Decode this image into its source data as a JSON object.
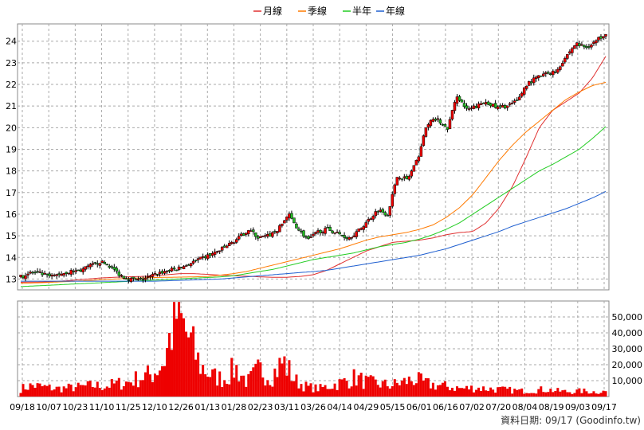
{
  "chart_data": {
    "type": "line",
    "legend": {
      "placement": "top-center",
      "items": [
        {
          "name": "月線",
          "color": "#e03030"
        },
        {
          "name": "季線",
          "color": "#ff7a00"
        },
        {
          "name": "半年",
          "color": "#22cc22"
        },
        {
          "name": "年線",
          "color": "#1f5fd0"
        }
      ]
    },
    "price_axis": {
      "ylim": [
        12.5,
        24.8
      ],
      "ticks": [
        "13",
        "14",
        "15",
        "16",
        "17",
        "18",
        "19",
        "20",
        "21",
        "22",
        "23",
        "24"
      ]
    },
    "volume_axis": {
      "ylim": [
        0,
        60000
      ],
      "ticks": [
        "10,000",
        "20,000",
        "30,000",
        "40,000",
        "50,000"
      ],
      "tick_values": [
        10000,
        20000,
        30000,
        40000,
        50000
      ]
    },
    "x_labels": [
      "09/18",
      "10/07",
      "10/23",
      "11/10",
      "11/25",
      "12/10",
      "12/26",
      "01/13",
      "01/28",
      "02/23",
      "03/11",
      "03/26",
      "04/14",
      "04/29",
      "05/15",
      "06/01",
      "06/16",
      "07/02",
      "07/20",
      "08/04",
      "08/19",
      "09/03",
      "09/17"
    ],
    "grid": true,
    "n_days": 245,
    "series": [
      {
        "name": "月線",
        "values": [
          12.85,
          12.86,
          12.87,
          12.9,
          12.95,
          13.0,
          13.05,
          13.08,
          13.1,
          13.12,
          13.15,
          13.2,
          13.25,
          13.25,
          13.22,
          13.18,
          13.15,
          13.13,
          13.1,
          13.08,
          13.08,
          13.12,
          13.2,
          13.4,
          13.7,
          14.0,
          14.3,
          14.5,
          14.7,
          14.75,
          14.8,
          14.9,
          15.05,
          15.15,
          15.2,
          15.6,
          16.3,
          17.3,
          18.6,
          20.0,
          20.8,
          21.2,
          21.6,
          22.3,
          23.3
        ]
      },
      {
        "name": "季線",
        "values": [
          12.8,
          12.82,
          12.84,
          12.87,
          12.9,
          12.93,
          12.97,
          13.0,
          13.03,
          13.05,
          13.07,
          13.08,
          13.09,
          13.1,
          13.12,
          13.18,
          13.25,
          13.35,
          13.5,
          13.65,
          13.8,
          13.95,
          14.1,
          14.25,
          14.4,
          14.6,
          14.8,
          14.95,
          15.05,
          15.15,
          15.3,
          15.5,
          15.85,
          16.3,
          16.9,
          17.7,
          18.5,
          19.2,
          19.8,
          20.3,
          20.8,
          21.3,
          21.65,
          21.95,
          22.1
        ]
      },
      {
        "name": "半年",
        "values": [
          12.65,
          12.68,
          12.71,
          12.74,
          12.77,
          12.8,
          12.83,
          12.86,
          12.89,
          12.92,
          12.95,
          12.98,
          13.01,
          13.04,
          13.07,
          13.1,
          13.15,
          13.25,
          13.35,
          13.45,
          13.6,
          13.75,
          13.9,
          14.0,
          14.1,
          14.2,
          14.35,
          14.5,
          14.6,
          14.7,
          14.85,
          15.05,
          15.3,
          15.6,
          16.0,
          16.4,
          16.8,
          17.2,
          17.6,
          18.0,
          18.3,
          18.65,
          19.0,
          19.5,
          20.05
        ]
      },
      {
        "name": "年線",
        "values": [
          12.9,
          12.9,
          12.9,
          12.9,
          12.9,
          12.9,
          12.9,
          12.9,
          12.9,
          12.9,
          12.9,
          12.92,
          12.94,
          12.96,
          12.98,
          13.0,
          13.05,
          13.1,
          13.15,
          13.2,
          13.25,
          13.3,
          13.35,
          13.4,
          13.5,
          13.6,
          13.7,
          13.8,
          13.9,
          14.0,
          14.1,
          14.25,
          14.4,
          14.6,
          14.8,
          15.0,
          15.2,
          15.45,
          15.65,
          15.85,
          16.05,
          16.25,
          16.5,
          16.75,
          17.05
        ]
      }
    ],
    "price_path": [
      13.1,
      13.3,
      13.25,
      13.1,
      13.25,
      13.35,
      13.4,
      13.6,
      13.8,
      13.6,
      13.2,
      13.0,
      12.95,
      13.1,
      13.3,
      13.4,
      13.5,
      13.7,
      13.9,
      14.1,
      14.3,
      14.6,
      14.9,
      15.3,
      14.9,
      15.0,
      15.3,
      16.0,
      15.3,
      14.8,
      15.2,
      15.3,
      15.1,
      14.9,
      15.2,
      15.7,
      16.2,
      16.0,
      17.8,
      17.6,
      18.5,
      20.2,
      20.4,
      19.9,
      21.5,
      20.8,
      21.0,
      21.2,
      20.9,
      21.0,
      21.2,
      22.0,
      22.3,
      22.5,
      22.6,
      23.3,
      23.9,
      23.7,
      24.0,
      24.4
    ],
    "volume_profile": [
      5000,
      7000,
      6000,
      5000,
      5500,
      6000,
      7000,
      6500,
      8000,
      9000,
      12000,
      14000,
      22000,
      52000,
      38000,
      20000,
      13000,
      11000,
      18000,
      9000,
      17000,
      13000,
      22000,
      10000,
      6000,
      5000,
      7000,
      9000,
      12000,
      9000,
      8000,
      7000,
      9000,
      11000,
      8000,
      7000,
      6000,
      5000,
      5500,
      5000,
      4500,
      4000,
      3500,
      4000,
      4500,
      3500,
      3000,
      3500,
      3000,
      3200
    ]
  },
  "footer": {
    "source": "資料日期: 09/17  (Goodinfo.tw)"
  }
}
